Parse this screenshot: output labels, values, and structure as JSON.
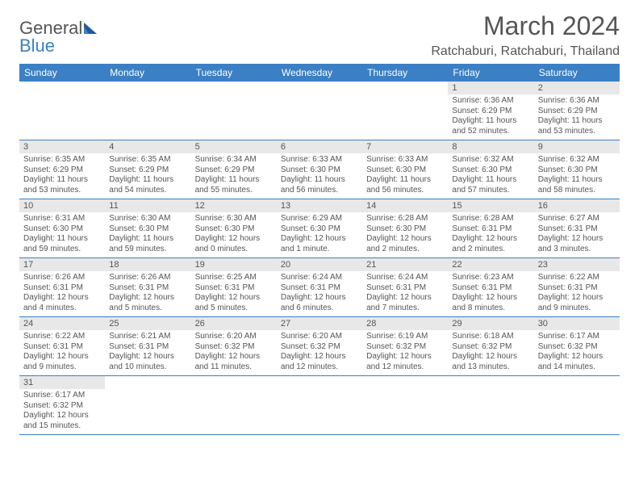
{
  "type": "calendar-table",
  "background_color": "#ffffff",
  "header_bar_color": "#3b7fc4",
  "header_text_color": "#ffffff",
  "daynum_bg_color": "#e8e8e8",
  "cell_border_color": "#3b7fc4",
  "body_text_color": "#555555",
  "logo": {
    "text1": "General",
    "text2": "Blue",
    "color1": "#555555",
    "color2": "#3b7fc4"
  },
  "title": "March 2024",
  "title_fontsize": 32,
  "location": "Ratchaburi, Ratchaburi, Thailand",
  "location_fontsize": 16,
  "weekdays": [
    "Sunday",
    "Monday",
    "Tuesday",
    "Wednesday",
    "Thursday",
    "Friday",
    "Saturday"
  ],
  "weekday_fontsize": 12,
  "daynum_fontsize": 11,
  "body_fontsize": 10,
  "days": {
    "1": {
      "sunrise": "Sunrise: 6:36 AM",
      "sunset": "Sunset: 6:29 PM",
      "daylight": "Daylight: 11 hours and 52 minutes."
    },
    "2": {
      "sunrise": "Sunrise: 6:36 AM",
      "sunset": "Sunset: 6:29 PM",
      "daylight": "Daylight: 11 hours and 53 minutes."
    },
    "3": {
      "sunrise": "Sunrise: 6:35 AM",
      "sunset": "Sunset: 6:29 PM",
      "daylight": "Daylight: 11 hours and 53 minutes."
    },
    "4": {
      "sunrise": "Sunrise: 6:35 AM",
      "sunset": "Sunset: 6:29 PM",
      "daylight": "Daylight: 11 hours and 54 minutes."
    },
    "5": {
      "sunrise": "Sunrise: 6:34 AM",
      "sunset": "Sunset: 6:29 PM",
      "daylight": "Daylight: 11 hours and 55 minutes."
    },
    "6": {
      "sunrise": "Sunrise: 6:33 AM",
      "sunset": "Sunset: 6:30 PM",
      "daylight": "Daylight: 11 hours and 56 minutes."
    },
    "7": {
      "sunrise": "Sunrise: 6:33 AM",
      "sunset": "Sunset: 6:30 PM",
      "daylight": "Daylight: 11 hours and 56 minutes."
    },
    "8": {
      "sunrise": "Sunrise: 6:32 AM",
      "sunset": "Sunset: 6:30 PM",
      "daylight": "Daylight: 11 hours and 57 minutes."
    },
    "9": {
      "sunrise": "Sunrise: 6:32 AM",
      "sunset": "Sunset: 6:30 PM",
      "daylight": "Daylight: 11 hours and 58 minutes."
    },
    "10": {
      "sunrise": "Sunrise: 6:31 AM",
      "sunset": "Sunset: 6:30 PM",
      "daylight": "Daylight: 11 hours and 59 minutes."
    },
    "11": {
      "sunrise": "Sunrise: 6:30 AM",
      "sunset": "Sunset: 6:30 PM",
      "daylight": "Daylight: 11 hours and 59 minutes."
    },
    "12": {
      "sunrise": "Sunrise: 6:30 AM",
      "sunset": "Sunset: 6:30 PM",
      "daylight": "Daylight: 12 hours and 0 minutes."
    },
    "13": {
      "sunrise": "Sunrise: 6:29 AM",
      "sunset": "Sunset: 6:30 PM",
      "daylight": "Daylight: 12 hours and 1 minute."
    },
    "14": {
      "sunrise": "Sunrise: 6:28 AM",
      "sunset": "Sunset: 6:30 PM",
      "daylight": "Daylight: 12 hours and 2 minutes."
    },
    "15": {
      "sunrise": "Sunrise: 6:28 AM",
      "sunset": "Sunset: 6:31 PM",
      "daylight": "Daylight: 12 hours and 2 minutes."
    },
    "16": {
      "sunrise": "Sunrise: 6:27 AM",
      "sunset": "Sunset: 6:31 PM",
      "daylight": "Daylight: 12 hours and 3 minutes."
    },
    "17": {
      "sunrise": "Sunrise: 6:26 AM",
      "sunset": "Sunset: 6:31 PM",
      "daylight": "Daylight: 12 hours and 4 minutes."
    },
    "18": {
      "sunrise": "Sunrise: 6:26 AM",
      "sunset": "Sunset: 6:31 PM",
      "daylight": "Daylight: 12 hours and 5 minutes."
    },
    "19": {
      "sunrise": "Sunrise: 6:25 AM",
      "sunset": "Sunset: 6:31 PM",
      "daylight": "Daylight: 12 hours and 5 minutes."
    },
    "20": {
      "sunrise": "Sunrise: 6:24 AM",
      "sunset": "Sunset: 6:31 PM",
      "daylight": "Daylight: 12 hours and 6 minutes."
    },
    "21": {
      "sunrise": "Sunrise: 6:24 AM",
      "sunset": "Sunset: 6:31 PM",
      "daylight": "Daylight: 12 hours and 7 minutes."
    },
    "22": {
      "sunrise": "Sunrise: 6:23 AM",
      "sunset": "Sunset: 6:31 PM",
      "daylight": "Daylight: 12 hours and 8 minutes."
    },
    "23": {
      "sunrise": "Sunrise: 6:22 AM",
      "sunset": "Sunset: 6:31 PM",
      "daylight": "Daylight: 12 hours and 9 minutes."
    },
    "24": {
      "sunrise": "Sunrise: 6:22 AM",
      "sunset": "Sunset: 6:31 PM",
      "daylight": "Daylight: 12 hours and 9 minutes."
    },
    "25": {
      "sunrise": "Sunrise: 6:21 AM",
      "sunset": "Sunset: 6:31 PM",
      "daylight": "Daylight: 12 hours and 10 minutes."
    },
    "26": {
      "sunrise": "Sunrise: 6:20 AM",
      "sunset": "Sunset: 6:32 PM",
      "daylight": "Daylight: 12 hours and 11 minutes."
    },
    "27": {
      "sunrise": "Sunrise: 6:20 AM",
      "sunset": "Sunset: 6:32 PM",
      "daylight": "Daylight: 12 hours and 12 minutes."
    },
    "28": {
      "sunrise": "Sunrise: 6:19 AM",
      "sunset": "Sunset: 6:32 PM",
      "daylight": "Daylight: 12 hours and 12 minutes."
    },
    "29": {
      "sunrise": "Sunrise: 6:18 AM",
      "sunset": "Sunset: 6:32 PM",
      "daylight": "Daylight: 12 hours and 13 minutes."
    },
    "30": {
      "sunrise": "Sunrise: 6:17 AM",
      "sunset": "Sunset: 6:32 PM",
      "daylight": "Daylight: 12 hours and 14 minutes."
    },
    "31": {
      "sunrise": "Sunrise: 6:17 AM",
      "sunset": "Sunset: 6:32 PM",
      "daylight": "Daylight: 12 hours and 15 minutes."
    }
  },
  "grid": [
    [
      null,
      null,
      null,
      null,
      null,
      "1",
      "2"
    ],
    [
      "3",
      "4",
      "5",
      "6",
      "7",
      "8",
      "9"
    ],
    [
      "10",
      "11",
      "12",
      "13",
      "14",
      "15",
      "16"
    ],
    [
      "17",
      "18",
      "19",
      "20",
      "21",
      "22",
      "23"
    ],
    [
      "24",
      "25",
      "26",
      "27",
      "28",
      "29",
      "30"
    ],
    [
      "31",
      null,
      null,
      null,
      null,
      null,
      null
    ]
  ]
}
